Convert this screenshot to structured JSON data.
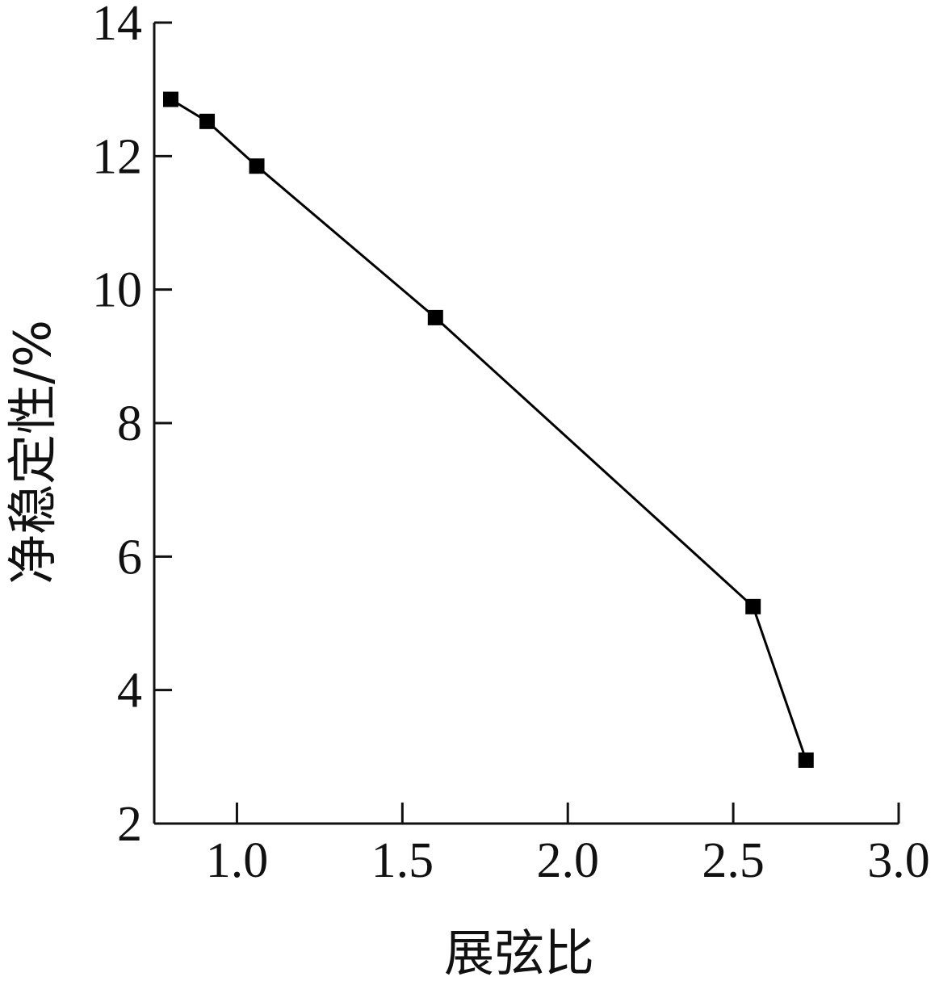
{
  "chart_data": {
    "type": "line",
    "title": "",
    "xlabel": "展弦比",
    "ylabel": "净稳定性/%",
    "xlim": [
      0.75,
      3.0
    ],
    "ylim": [
      2,
      14
    ],
    "x_ticks": [
      1.0,
      1.5,
      2.0,
      2.5,
      3.0
    ],
    "x_tick_labels": [
      "1.0",
      "1.5",
      "2.0",
      "2.5",
      "3.0"
    ],
    "y_ticks": [
      2,
      4,
      6,
      8,
      10,
      12,
      14
    ],
    "y_tick_labels": [
      "2",
      "4",
      "6",
      "8",
      "10",
      "12",
      "14"
    ],
    "grid": false,
    "series": [
      {
        "marker": "square",
        "color": "#000000",
        "x": [
          0.8,
          0.91,
          1.06,
          1.6,
          2.56,
          2.72
        ],
        "y": [
          12.85,
          12.52,
          11.85,
          9.58,
          5.25,
          2.95
        ]
      }
    ]
  }
}
